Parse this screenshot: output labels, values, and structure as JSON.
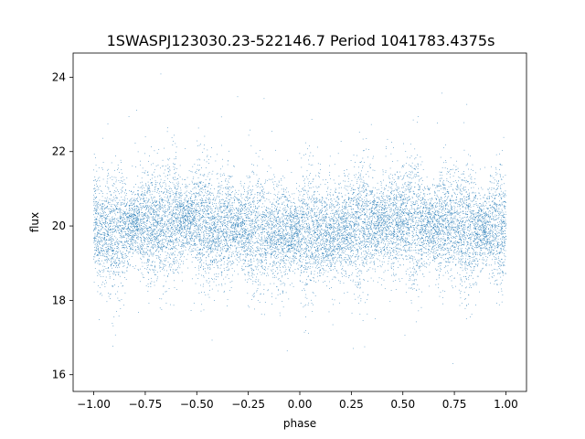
{
  "chart_data": {
    "type": "scatter",
    "title": "1SWASPJ123030.23-522146.7 Period 1041783.4375s",
    "xlabel": "phase",
    "ylabel": "flux",
    "xlim": [
      -1.1,
      1.1
    ],
    "ylim": [
      15.55,
      24.65
    ],
    "x_ticks": [
      -1.0,
      -0.75,
      -0.5,
      -0.25,
      0.0,
      0.25,
      0.5,
      0.75,
      1.0
    ],
    "x_tick_labels": [
      "−1.00",
      "−0.75",
      "−0.50",
      "−0.25",
      "0.00",
      "0.25",
      "0.50",
      "0.75",
      "1.00"
    ],
    "y_ticks": [
      16,
      18,
      20,
      22,
      24
    ],
    "y_tick_labels": [
      "16",
      "18",
      "20",
      "22",
      "24"
    ],
    "grid": false,
    "marker_color": "#1f77b4",
    "series": [
      {
        "phase_range": [
          -1.0,
          1.0
        ],
        "approx_point_count": 14000,
        "median_flux": 20.0,
        "typical_flux_range": [
          18.5,
          21.5
        ],
        "outlier_flux_range": [
          15.9,
          24.3
        ],
        "points_sample": [
          {
            "x": -1.0,
            "y": 20.0
          },
          {
            "x": -0.9,
            "y": 19.8
          },
          {
            "x": -0.8,
            "y": 20.1
          },
          {
            "x": -0.7,
            "y": 20.0
          },
          {
            "x": -0.6,
            "y": 20.2
          },
          {
            "x": -0.5,
            "y": 20.1
          },
          {
            "x": -0.4,
            "y": 19.9
          },
          {
            "x": -0.3,
            "y": 20.0
          },
          {
            "x": -0.2,
            "y": 19.8
          },
          {
            "x": -0.1,
            "y": 19.8
          },
          {
            "x": 0.0,
            "y": 19.8
          },
          {
            "x": 0.1,
            "y": 19.8
          },
          {
            "x": 0.2,
            "y": 19.9
          },
          {
            "x": 0.3,
            "y": 20.0
          },
          {
            "x": 0.4,
            "y": 20.1
          },
          {
            "x": 0.5,
            "y": 20.2
          },
          {
            "x": 0.6,
            "y": 20.0
          },
          {
            "x": 0.7,
            "y": 20.1
          },
          {
            "x": 0.8,
            "y": 19.9
          },
          {
            "x": 0.9,
            "y": 19.9
          },
          {
            "x": 1.0,
            "y": 20.0
          }
        ]
      }
    ]
  }
}
